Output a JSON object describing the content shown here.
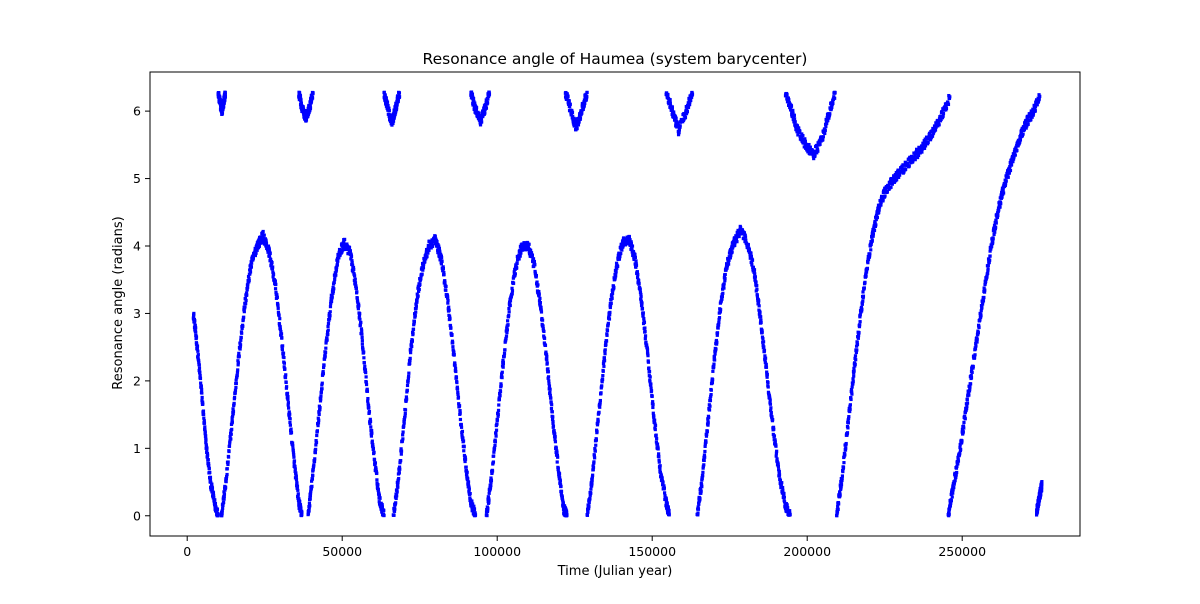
{
  "chart_data": {
    "type": "scatter",
    "title": "Resonance angle of Haumea (system barycenter)",
    "xlabel": "Time (Julian year)",
    "ylabel": "Resonance angle (radians)",
    "xlim": [
      -12000,
      288000
    ],
    "ylim": [
      -0.3,
      6.58
    ],
    "x_ticks": [
      0,
      50000,
      100000,
      150000,
      200000,
      250000
    ],
    "x_tick_labels": [
      "0",
      "50000",
      "100000",
      "150000",
      "200000",
      "250000"
    ],
    "y_ticks": [
      0,
      1,
      2,
      3,
      4,
      5,
      6
    ],
    "y_tick_labels": [
      "0",
      "1",
      "2",
      "3",
      "4",
      "5",
      "6"
    ],
    "grid": false,
    "legend": "none",
    "series": [
      {
        "color": "#0000ff",
        "marker": "dense-points",
        "segments": [
          [
            [
              2000,
              3.0
            ],
            [
              3000,
              2.6
            ],
            [
              4500,
              1.9
            ],
            [
              6000,
              1.1
            ],
            [
              7500,
              0.5
            ],
            [
              9000,
              0.15
            ],
            [
              10000,
              0.0
            ]
          ],
          [
            [
              11000,
              0.0
            ],
            [
              12500,
              0.5
            ],
            [
              14500,
              1.4
            ],
            [
              16500,
              2.3
            ],
            [
              18500,
              3.1
            ],
            [
              20500,
              3.7
            ],
            [
              22500,
              4.0
            ],
            [
              24500,
              4.15
            ],
            [
              26500,
              3.9
            ],
            [
              28500,
              3.4
            ],
            [
              30500,
              2.6
            ],
            [
              32500,
              1.7
            ],
            [
              34500,
              0.8
            ],
            [
              36000,
              0.2
            ],
            [
              37000,
              0.0
            ]
          ],
          [
            [
              39000,
              0.0
            ],
            [
              40500,
              0.6
            ],
            [
              42500,
              1.5
            ],
            [
              44500,
              2.4
            ],
            [
              46500,
              3.2
            ],
            [
              48500,
              3.8
            ],
            [
              50500,
              4.05
            ],
            [
              52500,
              3.9
            ],
            [
              54500,
              3.4
            ],
            [
              56500,
              2.6
            ],
            [
              58500,
              1.6
            ],
            [
              60500,
              0.8
            ],
            [
              62000,
              0.25
            ],
            [
              63500,
              0.0
            ]
          ],
          [
            [
              66500,
              0.0
            ],
            [
              68000,
              0.5
            ],
            [
              70000,
              1.4
            ],
            [
              72000,
              2.4
            ],
            [
              74000,
              3.2
            ],
            [
              76000,
              3.7
            ],
            [
              78000,
              4.0
            ],
            [
              80000,
              4.1
            ],
            [
              82000,
              3.8
            ],
            [
              84000,
              3.2
            ],
            [
              86000,
              2.4
            ],
            [
              88000,
              1.5
            ],
            [
              90000,
              0.7
            ],
            [
              91500,
              0.2
            ],
            [
              93000,
              0.0
            ]
          ],
          [
            [
              96500,
              0.0
            ],
            [
              98000,
              0.5
            ],
            [
              100000,
              1.4
            ],
            [
              102000,
              2.3
            ],
            [
              104000,
              3.1
            ],
            [
              106000,
              3.7
            ],
            [
              108000,
              4.0
            ],
            [
              110000,
              4.0
            ],
            [
              112000,
              3.7
            ],
            [
              114000,
              3.1
            ],
            [
              116000,
              2.3
            ],
            [
              118000,
              1.4
            ],
            [
              120000,
              0.6
            ],
            [
              121500,
              0.1
            ],
            [
              122500,
              0.0
            ]
          ],
          [
            [
              129000,
              0.0
            ],
            [
              130500,
              0.5
            ],
            [
              132500,
              1.4
            ],
            [
              134500,
              2.3
            ],
            [
              136500,
              3.1
            ],
            [
              138500,
              3.7
            ],
            [
              140500,
              4.05
            ],
            [
              142500,
              4.1
            ],
            [
              144500,
              3.8
            ],
            [
              146500,
              3.2
            ],
            [
              148500,
              2.4
            ],
            [
              150500,
              1.5
            ],
            [
              152500,
              0.7
            ],
            [
              154500,
              0.2
            ],
            [
              155500,
              0.0
            ]
          ],
          [
            [
              164500,
              0.0
            ],
            [
              166000,
              0.5
            ],
            [
              168000,
              1.4
            ],
            [
              170000,
              2.3
            ],
            [
              172000,
              3.1
            ],
            [
              174000,
              3.7
            ],
            [
              176000,
              4.0
            ],
            [
              178500,
              4.25
            ],
            [
              181000,
              4.0
            ],
            [
              183000,
              3.6
            ],
            [
              185000,
              2.9
            ],
            [
              187000,
              2.1
            ],
            [
              189000,
              1.3
            ],
            [
              191000,
              0.6
            ],
            [
              193000,
              0.15
            ],
            [
              194500,
              0.0
            ]
          ],
          [
            [
              209500,
              0.0
            ],
            [
              211000,
              0.5
            ],
            [
              213000,
              1.3
            ],
            [
              215000,
              2.1
            ],
            [
              217000,
              2.9
            ],
            [
              219000,
              3.6
            ],
            [
              221000,
              4.15
            ],
            [
              223000,
              4.55
            ],
            [
              225000,
              4.8
            ],
            [
              228000,
              5.0
            ],
            [
              231000,
              5.15
            ],
            [
              234000,
              5.3
            ],
            [
              237000,
              5.45
            ],
            [
              240000,
              5.65
            ],
            [
              243000,
              5.9
            ],
            [
              246000,
              6.2
            ]
          ],
          [
            [
              245500,
              0.0
            ],
            [
              247000,
              0.4
            ],
            [
              249000,
              0.9
            ],
            [
              251000,
              1.5
            ],
            [
              253000,
              2.1
            ],
            [
              255000,
              2.7
            ],
            [
              257000,
              3.3
            ],
            [
              259000,
              3.9
            ],
            [
              261000,
              4.4
            ],
            [
              263000,
              4.8
            ],
            [
              265000,
              5.1
            ],
            [
              267000,
              5.4
            ],
            [
              269000,
              5.65
            ],
            [
              271000,
              5.85
            ],
            [
              273000,
              6.0
            ],
            [
              275000,
              6.22
            ]
          ],
          [
            [
              274000,
              0.05
            ],
            [
              274600,
              0.2
            ],
            [
              275200,
              0.35
            ],
            [
              275700,
              0.45
            ]
          ],
          [
            [
              10000,
              6.28
            ],
            [
              10500,
              6.15
            ],
            [
              11200,
              6.0
            ],
            [
              11900,
              6.15
            ],
            [
              12300,
              6.28
            ]
          ],
          [
            [
              36000,
              6.28
            ],
            [
              37000,
              6.05
            ],
            [
              38300,
              5.88
            ],
            [
              39500,
              6.05
            ],
            [
              40600,
              6.28
            ]
          ],
          [
            [
              63500,
              6.28
            ],
            [
              64700,
              6.05
            ],
            [
              66000,
              5.82
            ],
            [
              67300,
              6.05
            ],
            [
              68500,
              6.28
            ]
          ],
          [
            [
              91500,
              6.28
            ],
            [
              92800,
              6.05
            ],
            [
              94500,
              5.85
            ],
            [
              96200,
              6.05
            ],
            [
              97500,
              6.28
            ]
          ],
          [
            [
              122000,
              6.28
            ],
            [
              123500,
              6.05
            ],
            [
              125500,
              5.75
            ],
            [
              127500,
              6.05
            ],
            [
              129000,
              6.28
            ]
          ],
          [
            [
              154500,
              6.28
            ],
            [
              156500,
              6.0
            ],
            [
              158500,
              5.72
            ],
            [
              161000,
              6.0
            ],
            [
              163000,
              6.28
            ]
          ],
          [
            [
              193000,
              6.28
            ],
            [
              195000,
              6.0
            ],
            [
              197000,
              5.7
            ],
            [
              199500,
              5.5
            ],
            [
              202000,
              5.35
            ],
            [
              204500,
              5.55
            ],
            [
              207000,
              5.95
            ],
            [
              209000,
              6.28
            ]
          ]
        ]
      }
    ]
  }
}
